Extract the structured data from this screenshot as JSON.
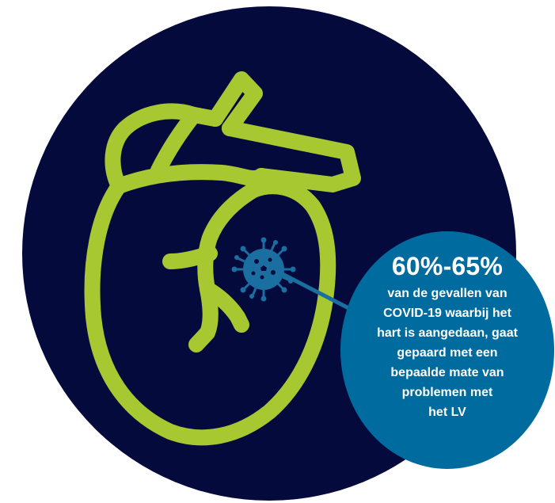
{
  "colors": {
    "background_circle": "#050a3c",
    "heart_outline": "#a8c832",
    "virus": "#1a6fa0",
    "callout_circle": "#006b9e",
    "callout_text": "#ffffff"
  },
  "icons": {
    "heart": "heart-outline-icon",
    "virus": "virus-icon"
  },
  "callout": {
    "stat": "60%-65%",
    "description_lines": [
      "van de gevallen van",
      "COVID-19 waarbij het",
      "hart is aangedaan, gaat",
      "gepaard met een",
      "bepaalde mate van",
      "problemen met",
      "het LV"
    ]
  }
}
